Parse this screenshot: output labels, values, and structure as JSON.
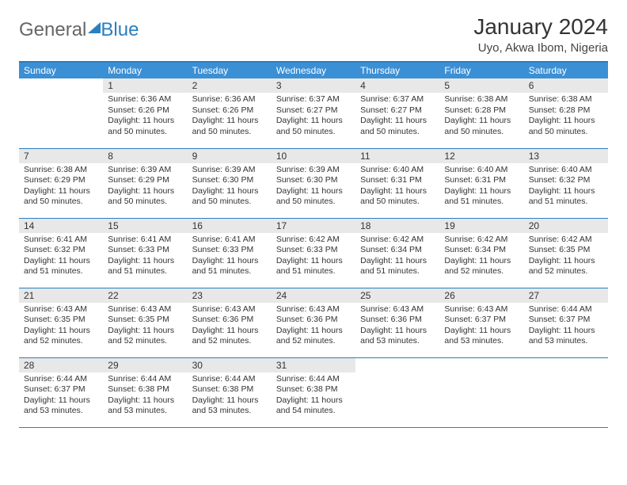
{
  "logo": {
    "part1": "General",
    "part2": "Blue"
  },
  "title": "January 2024",
  "location": "Uyo, Akwa Ibom, Nigeria",
  "colors": {
    "header_bg": "#3b8fd4",
    "header_text": "#ffffff",
    "border": "#2a7fbf",
    "daynum_bg": "#e8e8e8",
    "body_text": "#333333"
  },
  "weekdays": [
    "Sunday",
    "Monday",
    "Tuesday",
    "Wednesday",
    "Thursday",
    "Friday",
    "Saturday"
  ],
  "weeks": [
    [
      {
        "n": "",
        "sr": "",
        "ss": "",
        "dl": ""
      },
      {
        "n": "1",
        "sr": "6:36 AM",
        "ss": "6:26 PM",
        "dl": "11 hours and 50 minutes."
      },
      {
        "n": "2",
        "sr": "6:36 AM",
        "ss": "6:26 PM",
        "dl": "11 hours and 50 minutes."
      },
      {
        "n": "3",
        "sr": "6:37 AM",
        "ss": "6:27 PM",
        "dl": "11 hours and 50 minutes."
      },
      {
        "n": "4",
        "sr": "6:37 AM",
        "ss": "6:27 PM",
        "dl": "11 hours and 50 minutes."
      },
      {
        "n": "5",
        "sr": "6:38 AM",
        "ss": "6:28 PM",
        "dl": "11 hours and 50 minutes."
      },
      {
        "n": "6",
        "sr": "6:38 AM",
        "ss": "6:28 PM",
        "dl": "11 hours and 50 minutes."
      }
    ],
    [
      {
        "n": "7",
        "sr": "6:38 AM",
        "ss": "6:29 PM",
        "dl": "11 hours and 50 minutes."
      },
      {
        "n": "8",
        "sr": "6:39 AM",
        "ss": "6:29 PM",
        "dl": "11 hours and 50 minutes."
      },
      {
        "n": "9",
        "sr": "6:39 AM",
        "ss": "6:30 PM",
        "dl": "11 hours and 50 minutes."
      },
      {
        "n": "10",
        "sr": "6:39 AM",
        "ss": "6:30 PM",
        "dl": "11 hours and 50 minutes."
      },
      {
        "n": "11",
        "sr": "6:40 AM",
        "ss": "6:31 PM",
        "dl": "11 hours and 50 minutes."
      },
      {
        "n": "12",
        "sr": "6:40 AM",
        "ss": "6:31 PM",
        "dl": "11 hours and 51 minutes."
      },
      {
        "n": "13",
        "sr": "6:40 AM",
        "ss": "6:32 PM",
        "dl": "11 hours and 51 minutes."
      }
    ],
    [
      {
        "n": "14",
        "sr": "6:41 AM",
        "ss": "6:32 PM",
        "dl": "11 hours and 51 minutes."
      },
      {
        "n": "15",
        "sr": "6:41 AM",
        "ss": "6:33 PM",
        "dl": "11 hours and 51 minutes."
      },
      {
        "n": "16",
        "sr": "6:41 AM",
        "ss": "6:33 PM",
        "dl": "11 hours and 51 minutes."
      },
      {
        "n": "17",
        "sr": "6:42 AM",
        "ss": "6:33 PM",
        "dl": "11 hours and 51 minutes."
      },
      {
        "n": "18",
        "sr": "6:42 AM",
        "ss": "6:34 PM",
        "dl": "11 hours and 51 minutes."
      },
      {
        "n": "19",
        "sr": "6:42 AM",
        "ss": "6:34 PM",
        "dl": "11 hours and 52 minutes."
      },
      {
        "n": "20",
        "sr": "6:42 AM",
        "ss": "6:35 PM",
        "dl": "11 hours and 52 minutes."
      }
    ],
    [
      {
        "n": "21",
        "sr": "6:43 AM",
        "ss": "6:35 PM",
        "dl": "11 hours and 52 minutes."
      },
      {
        "n": "22",
        "sr": "6:43 AM",
        "ss": "6:35 PM",
        "dl": "11 hours and 52 minutes."
      },
      {
        "n": "23",
        "sr": "6:43 AM",
        "ss": "6:36 PM",
        "dl": "11 hours and 52 minutes."
      },
      {
        "n": "24",
        "sr": "6:43 AM",
        "ss": "6:36 PM",
        "dl": "11 hours and 52 minutes."
      },
      {
        "n": "25",
        "sr": "6:43 AM",
        "ss": "6:36 PM",
        "dl": "11 hours and 53 minutes."
      },
      {
        "n": "26",
        "sr": "6:43 AM",
        "ss": "6:37 PM",
        "dl": "11 hours and 53 minutes."
      },
      {
        "n": "27",
        "sr": "6:44 AM",
        "ss": "6:37 PM",
        "dl": "11 hours and 53 minutes."
      }
    ],
    [
      {
        "n": "28",
        "sr": "6:44 AM",
        "ss": "6:37 PM",
        "dl": "11 hours and 53 minutes."
      },
      {
        "n": "29",
        "sr": "6:44 AM",
        "ss": "6:38 PM",
        "dl": "11 hours and 53 minutes."
      },
      {
        "n": "30",
        "sr": "6:44 AM",
        "ss": "6:38 PM",
        "dl": "11 hours and 53 minutes."
      },
      {
        "n": "31",
        "sr": "6:44 AM",
        "ss": "6:38 PM",
        "dl": "11 hours and 54 minutes."
      },
      {
        "n": "",
        "sr": "",
        "ss": "",
        "dl": ""
      },
      {
        "n": "",
        "sr": "",
        "ss": "",
        "dl": ""
      },
      {
        "n": "",
        "sr": "",
        "ss": "",
        "dl": ""
      }
    ]
  ],
  "labels": {
    "sunrise": "Sunrise:",
    "sunset": "Sunset:",
    "daylight": "Daylight:"
  }
}
